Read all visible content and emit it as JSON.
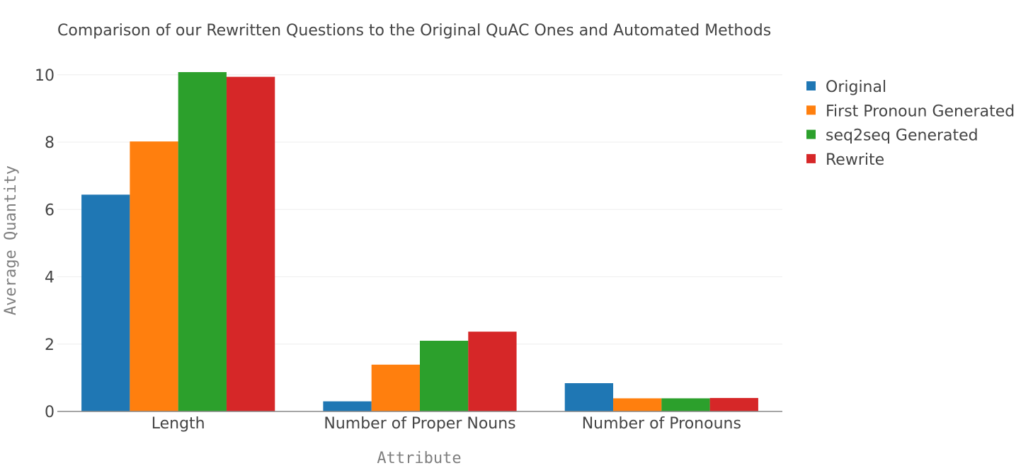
{
  "chart_data": {
    "type": "bar",
    "title": "Comparison of our Rewritten Questions to the Original QuAC Ones and Automated Methods",
    "xlabel": "Attribute",
    "ylabel": "Average Quantity",
    "categories": [
      "Length",
      "Number of Proper Nouns",
      "Number of Pronouns"
    ],
    "ylim": [
      0,
      10.5
    ],
    "yticks": [
      0,
      2,
      4,
      6,
      8,
      10
    ],
    "grid": true,
    "legend_position": "top-right",
    "series": [
      {
        "name": "Original",
        "color": "#1f77b4",
        "values": [
          6.44,
          0.3,
          0.84
        ]
      },
      {
        "name": "First Pronoun Generated",
        "color": "#ff7f0e",
        "values": [
          8.02,
          1.39,
          0.39
        ]
      },
      {
        "name": "seq2seq Generated",
        "color": "#2ca02c",
        "values": [
          10.08,
          2.1,
          0.39
        ]
      },
      {
        "name": "Rewrite",
        "color": "#d62728",
        "values": [
          9.94,
          2.37,
          0.4
        ]
      }
    ]
  }
}
